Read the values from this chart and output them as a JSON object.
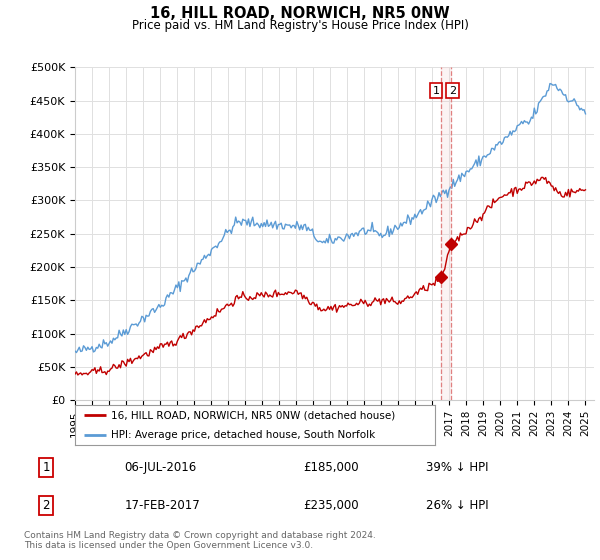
{
  "title": "16, HILL ROAD, NORWICH, NR5 0NW",
  "subtitle": "Price paid vs. HM Land Registry's House Price Index (HPI)",
  "ylabel_ticks": [
    "£0",
    "£50K",
    "£100K",
    "£150K",
    "£200K",
    "£250K",
    "£300K",
    "£350K",
    "£400K",
    "£450K",
    "£500K"
  ],
  "ytick_values": [
    0,
    50000,
    100000,
    150000,
    200000,
    250000,
    300000,
    350000,
    400000,
    450000,
    500000
  ],
  "ylim": [
    0,
    500000
  ],
  "xlim_start": 1995.0,
  "xlim_end": 2025.5,
  "hpi_color": "#5b9bd5",
  "price_color": "#c00000",
  "vline_color": "#e08080",
  "shade_color": "#f0d0d0",
  "background_color": "#ffffff",
  "grid_color": "#e0e0e0",
  "transactions": [
    {
      "date_label": "06-JUL-2016",
      "date_x": 2016.51,
      "price": 185000,
      "pct": "39% ↓ HPI",
      "marker": "1"
    },
    {
      "date_label": "17-FEB-2017",
      "date_x": 2017.12,
      "price": 235000,
      "pct": "26% ↓ HPI",
      "marker": "2"
    }
  ],
  "legend_entries": [
    {
      "label": "16, HILL ROAD, NORWICH, NR5 0NW (detached house)",
      "color": "#c00000"
    },
    {
      "label": "HPI: Average price, detached house, South Norfolk",
      "color": "#5b9bd5"
    }
  ],
  "footer": "Contains HM Land Registry data © Crown copyright and database right 2024.\nThis data is licensed under the Open Government Licence v3.0.",
  "table_rows": [
    [
      "1",
      "06-JUL-2016",
      "£185,000",
      "39% ↓ HPI"
    ],
    [
      "2",
      "17-FEB-2017",
      "£235,000",
      "26% ↓ HPI"
    ]
  ]
}
